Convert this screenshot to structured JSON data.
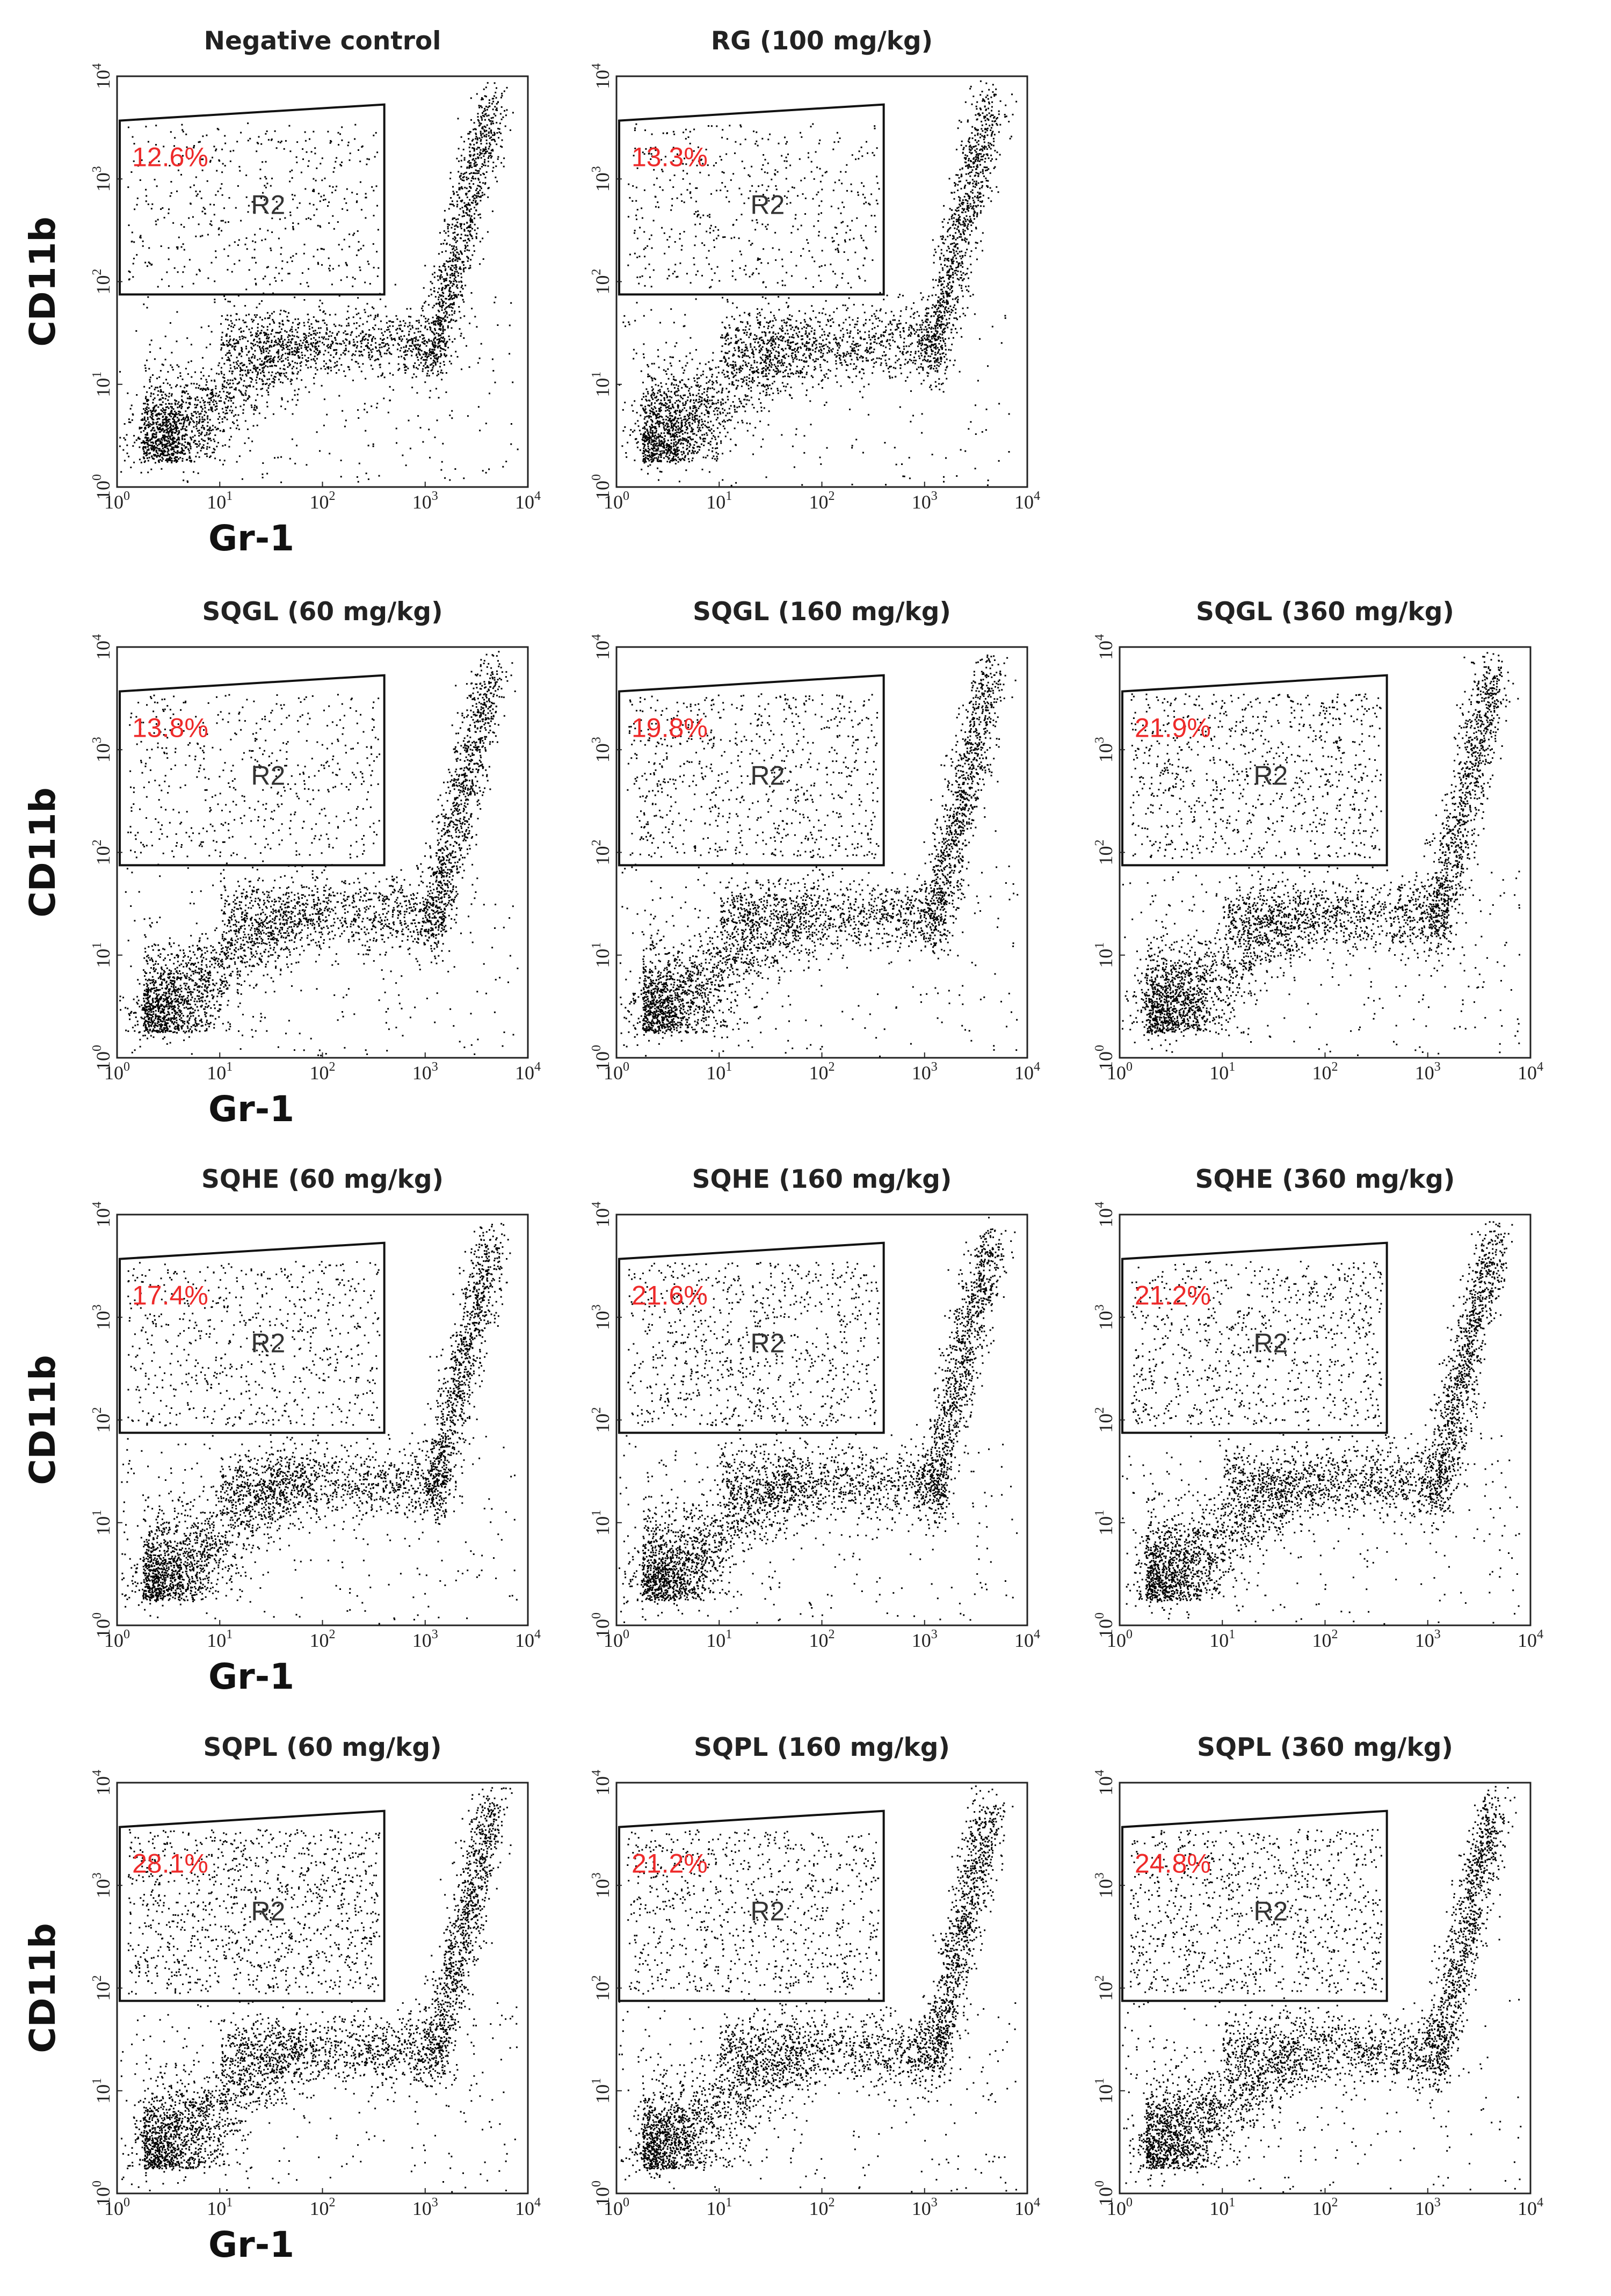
{
  "figure": {
    "y_axis_label": "CD11b",
    "x_axis_label": "Gr-1",
    "gate_label": "R2",
    "tick_labels": [
      "10",
      "10",
      "10",
      "10",
      "10"
    ],
    "tick_exponents": [
      "0",
      "1",
      "2",
      "3",
      "4"
    ]
  },
  "colors": {
    "percent_text": "#ee2a2a",
    "dots": "#000000",
    "frame": "#222222"
  },
  "chart_data": [
    {
      "type": "scatter",
      "title": "Negative control",
      "gate_percent": "12.6%",
      "xscale": "log",
      "yscale": "log",
      "xlim": [
        1,
        10000
      ],
      "ylim": [
        1,
        10000
      ],
      "gate": {
        "x": [
          1,
          400
        ],
        "y": [
          75,
          5000
        ]
      }
    },
    {
      "type": "scatter",
      "title": "RG (100 mg/kg)",
      "gate_percent": "13.3%",
      "xscale": "log",
      "yscale": "log",
      "xlim": [
        1,
        10000
      ],
      "ylim": [
        1,
        10000
      ],
      "gate": {
        "x": [
          1,
          400
        ],
        "y": [
          75,
          5000
        ]
      }
    },
    {
      "type": "scatter",
      "title": "SQGL (60 mg/kg)",
      "gate_percent": "13.8%",
      "xscale": "log",
      "yscale": "log",
      "xlim": [
        1,
        10000
      ],
      "ylim": [
        1,
        10000
      ],
      "gate": {
        "x": [
          1,
          400
        ],
        "y": [
          75,
          5000
        ]
      }
    },
    {
      "type": "scatter",
      "title": "SQGL (160 mg/kg)",
      "gate_percent": "19.8%",
      "xscale": "log",
      "yscale": "log",
      "xlim": [
        1,
        10000
      ],
      "ylim": [
        1,
        10000
      ],
      "gate": {
        "x": [
          1,
          400
        ],
        "y": [
          75,
          5000
        ]
      }
    },
    {
      "type": "scatter",
      "title": "SQGL (360 mg/kg)",
      "gate_percent": "21.9%",
      "xscale": "log",
      "yscale": "log",
      "xlim": [
        1,
        10000
      ],
      "ylim": [
        1,
        10000
      ],
      "gate": {
        "x": [
          1,
          400
        ],
        "y": [
          75,
          5000
        ]
      }
    },
    {
      "type": "scatter",
      "title": "SQHE (60 mg/kg)",
      "gate_percent": "17.4%",
      "xscale": "log",
      "yscale": "log",
      "xlim": [
        1,
        10000
      ],
      "ylim": [
        1,
        10000
      ],
      "gate": {
        "x": [
          1,
          400
        ],
        "y": [
          75,
          5000
        ]
      }
    },
    {
      "type": "scatter",
      "title": "SQHE (160 mg/kg)",
      "gate_percent": "21.6%",
      "xscale": "log",
      "yscale": "log",
      "xlim": [
        1,
        10000
      ],
      "ylim": [
        1,
        10000
      ],
      "gate": {
        "x": [
          1,
          400
        ],
        "y": [
          75,
          5000
        ]
      }
    },
    {
      "type": "scatter",
      "title": "SQHE (360 mg/kg)",
      "gate_percent": "21.2%",
      "xscale": "log",
      "yscale": "log",
      "xlim": [
        1,
        10000
      ],
      "ylim": [
        1,
        10000
      ],
      "gate": {
        "x": [
          1,
          400
        ],
        "y": [
          75,
          5000
        ]
      }
    },
    {
      "type": "scatter",
      "title": "SQPL (60 mg/kg)",
      "gate_percent": "28.1%",
      "xscale": "log",
      "yscale": "log",
      "xlim": [
        1,
        10000
      ],
      "ylim": [
        1,
        10000
      ],
      "gate": {
        "x": [
          1,
          400
        ],
        "y": [
          75,
          5000
        ]
      }
    },
    {
      "type": "scatter",
      "title": "SQPL (160 mg/kg)",
      "gate_percent": "21.2%",
      "xscale": "log",
      "yscale": "log",
      "xlim": [
        1,
        10000
      ],
      "ylim": [
        1,
        10000
      ],
      "gate": {
        "x": [
          1,
          400
        ],
        "y": [
          75,
          5000
        ]
      }
    },
    {
      "type": "scatter",
      "title": "SQPL (360 mg/kg)",
      "gate_percent": "24.8%",
      "xscale": "log",
      "yscale": "log",
      "xlim": [
        1,
        10000
      ],
      "ylim": [
        1,
        10000
      ],
      "gate": {
        "x": [
          1,
          400
        ],
        "y": [
          75,
          5000
        ]
      }
    }
  ]
}
